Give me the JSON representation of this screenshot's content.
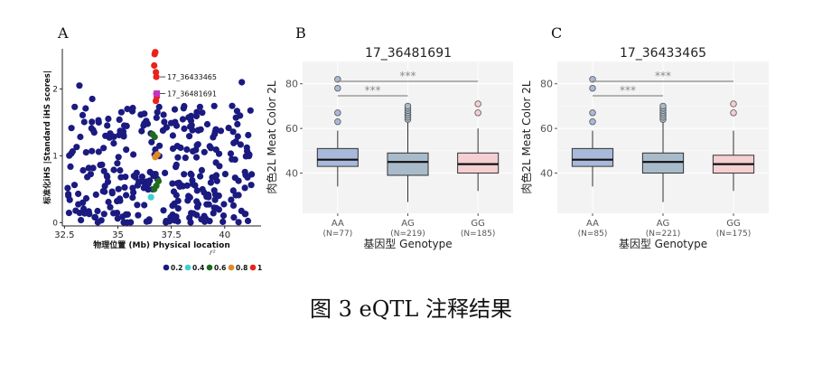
{
  "caption": "图 3 eQTL 注释结果",
  "chart_data": [
    {
      "panel": "A",
      "type": "scatter",
      "xlabel": "物理位置 (Mb) Physical location",
      "ylabel": "标准化iHS |Standard iHS scores|",
      "xticks": [
        "32.5",
        "35",
        "37.5",
        "40"
      ],
      "yticks": [
        "0",
        "1",
        "2"
      ],
      "xlim": [
        32.4,
        41.7
      ],
      "ylim": [
        -0.05,
        2.6
      ],
      "legend_title": "r²",
      "legend": [
        {
          "label": "0.2",
          "color": "#1a1a80"
        },
        {
          "label": "0.4",
          "color": "#3fd0d0"
        },
        {
          "label": "0.6",
          "color": "#1f6b1f"
        },
        {
          "label": "0.8",
          "color": "#e08a24"
        },
        {
          "label": "1",
          "color": "#e8231b"
        }
      ],
      "annotations": [
        {
          "label": "17_36433465",
          "x": 36.8,
          "y": 2.18
        },
        {
          "label": "17_36481691",
          "x": 36.8,
          "y": 1.93
        }
      ],
      "highlighted_points": [
        {
          "x": 36.75,
          "y": 2.55,
          "r2": "1"
        },
        {
          "x": 36.72,
          "y": 2.52,
          "r2": "1"
        },
        {
          "x": 36.7,
          "y": 2.35,
          "r2": "1"
        },
        {
          "x": 36.78,
          "y": 2.25,
          "r2": "1"
        },
        {
          "x": 36.8,
          "y": 2.18,
          "r2": "1"
        },
        {
          "x": 36.8,
          "y": 1.93,
          "r2": "1"
        },
        {
          "x": 36.82,
          "y": 1.88,
          "r2": "1"
        },
        {
          "x": 36.78,
          "y": 1.82,
          "r2": "1"
        },
        {
          "x": 36.62,
          "y": 1.32,
          "r2": "0.6"
        },
        {
          "x": 36.72,
          "y": 1.28,
          "r2": "0.6"
        },
        {
          "x": 36.85,
          "y": 1.02,
          "r2": "0.8"
        },
        {
          "x": 36.75,
          "y": 0.98,
          "r2": "0.8"
        },
        {
          "x": 36.8,
          "y": 0.55,
          "r2": "0.6"
        },
        {
          "x": 36.7,
          "y": 0.5,
          "r2": "0.6"
        },
        {
          "x": 36.55,
          "y": 0.38,
          "r2": "0.4"
        },
        {
          "x": 36.9,
          "y": 0.62,
          "r2": "0.6"
        }
      ]
    },
    {
      "panel": "B",
      "type": "box",
      "title": "17_36481691",
      "xlabel": "基因型 Genotype",
      "ylabel": "肉色2L Meat Color 2L",
      "ylim": [
        22,
        90
      ],
      "yticks": [
        40,
        60,
        80
      ],
      "categories": [
        "AA",
        "AG",
        "GG"
      ],
      "counts": [
        "(N=77)",
        "(N=219)",
        "(N=185)"
      ],
      "colors": [
        "#a9b9d9",
        "#a8bbca",
        "#f5cfd2"
      ],
      "boxes": [
        {
          "whislo": 34,
          "q1": 43,
          "med": 46,
          "q3": 51,
          "whishi": 59,
          "fliers": [
            63,
            67,
            78,
            82
          ]
        },
        {
          "whislo": 27,
          "q1": 39,
          "med": 45,
          "q3": 49,
          "whishi": 63,
          "fliers": [
            64,
            65,
            66,
            67,
            68,
            69,
            70
          ]
        },
        {
          "whislo": 32,
          "q1": 40,
          "med": 44,
          "q3": 49,
          "whishi": 60,
          "fliers": [
            67,
            71
          ]
        }
      ],
      "significance": [
        {
          "from": "AA",
          "to": "GG",
          "label": "***"
        },
        {
          "from": "AA",
          "to": "AG",
          "label": "***"
        }
      ]
    },
    {
      "panel": "C",
      "type": "box",
      "title": "17_36433465",
      "xlabel": "基因型 Genotype",
      "ylabel": "肉色2L Meat Color 2L",
      "ylim": [
        22,
        90
      ],
      "yticks": [
        40,
        60,
        80
      ],
      "categories": [
        "AA",
        "AG",
        "GG"
      ],
      "counts": [
        "(N=85)",
        "(N=221)",
        "(N=175)"
      ],
      "colors": [
        "#a9b9d9",
        "#a8bbca",
        "#f5cfd2"
      ],
      "boxes": [
        {
          "whislo": 34,
          "q1": 43,
          "med": 46,
          "q3": 51,
          "whishi": 59,
          "fliers": [
            63,
            67,
            78,
            82
          ]
        },
        {
          "whislo": 27,
          "q1": 40,
          "med": 45,
          "q3": 49,
          "whishi": 63,
          "fliers": [
            64,
            65,
            66,
            67,
            68,
            69,
            70
          ]
        },
        {
          "whislo": 32,
          "q1": 40,
          "med": 44,
          "q3": 48,
          "whishi": 59,
          "fliers": [
            67,
            71
          ]
        }
      ],
      "significance": [
        {
          "from": "AA",
          "to": "GG",
          "label": "***"
        },
        {
          "from": "AA",
          "to": "AG",
          "label": "***"
        }
      ]
    }
  ]
}
